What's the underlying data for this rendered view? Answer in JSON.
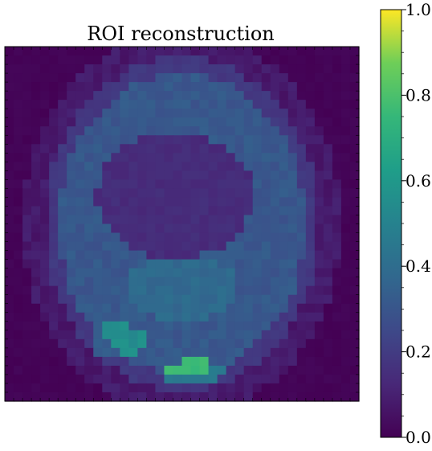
{
  "chart_data": {
    "type": "heatmap",
    "title": "ROI reconstruction",
    "xlabel": "",
    "ylabel": "",
    "colormap": "viridis",
    "value_range": [
      0.0,
      1.0
    ],
    "colorbar": {
      "ticks": [
        0.0,
        0.2,
        0.4,
        0.6,
        0.8,
        1.0
      ],
      "tick_labels": [
        "0.0",
        "0.2",
        "0.4",
        "0.6",
        "0.8",
        "1.0"
      ]
    },
    "grid_size": [
      40,
      40
    ],
    "description_of_values": "background ≈0.0, outer ring ≈0.3, inner hollow ≈0.12–0.15, central blob ≈0.35, bright spot at bottom-center ≈0.75",
    "regions": [
      {
        "name": "background",
        "value": 0.0
      },
      {
        "name": "outer-ring",
        "value": 0.3
      },
      {
        "name": "inner-hollow",
        "value": 0.13
      },
      {
        "name": "central-blob",
        "value": 0.35
      },
      {
        "name": "lower-left-patch",
        "value": 0.55
      },
      {
        "name": "bottom-bright-spot",
        "value": 0.75
      }
    ]
  }
}
